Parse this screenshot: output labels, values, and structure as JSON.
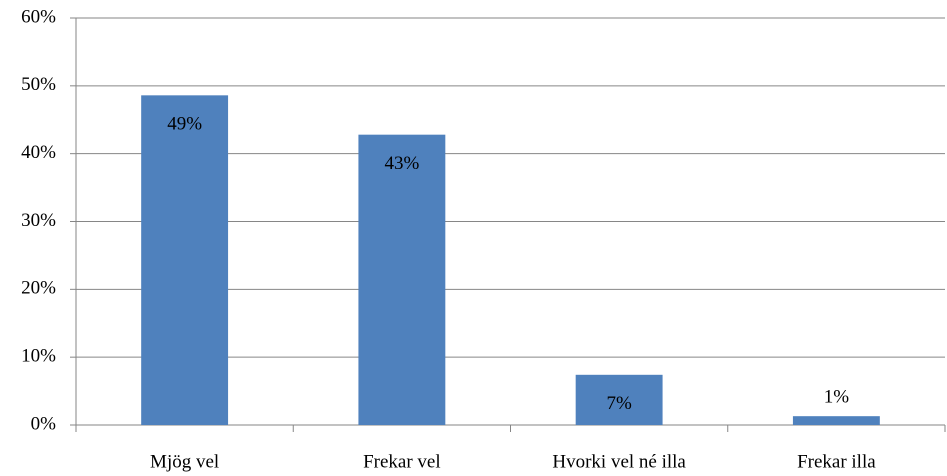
{
  "chart_data": {
    "type": "bar",
    "categories": [
      "Mjög vel",
      "Frekar vel",
      "Hvorki vel né illa",
      "Frekar illa"
    ],
    "values": [
      48.6,
      42.8,
      7.4,
      1.3
    ],
    "value_labels": [
      "49%",
      "43%",
      "7%",
      "1%"
    ],
    "color": "#4f81bd",
    "ylim": [
      0,
      60
    ],
    "yticks": [
      {
        "value": 0,
        "label": "0%"
      },
      {
        "value": 10,
        "label": "10%"
      },
      {
        "value": 20,
        "label": "20%"
      },
      {
        "value": 30,
        "label": "30%"
      },
      {
        "value": 40,
        "label": "40%"
      },
      {
        "value": 50,
        "label": "50%"
      },
      {
        "value": 60,
        "label": "60%"
      }
    ],
    "grid": true
  }
}
